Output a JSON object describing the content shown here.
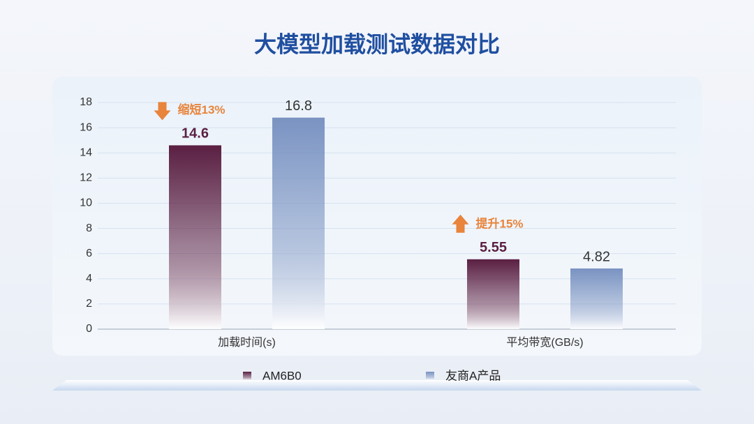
{
  "chart_data": {
    "type": "bar",
    "title": "大模型加载测试数据对比",
    "categories": [
      "加载时间(s)",
      "平均带宽(GB/s)"
    ],
    "series": [
      {
        "name": "AM6B0",
        "color": "#5a1f42",
        "values": [
          14.6,
          5.55
        ]
      },
      {
        "name": "友商A产品",
        "color": "#7a93c2",
        "values": [
          16.8,
          4.82
        ]
      }
    ],
    "annotations": [
      "缩短13%",
      "提升15%"
    ],
    "annotation_color": "#e8843c",
    "ylim": [
      0,
      18
    ],
    "yticks": [
      0,
      2,
      4,
      6,
      8,
      10,
      12,
      14,
      16,
      18
    ],
    "grid": true,
    "legend": "bottom"
  }
}
